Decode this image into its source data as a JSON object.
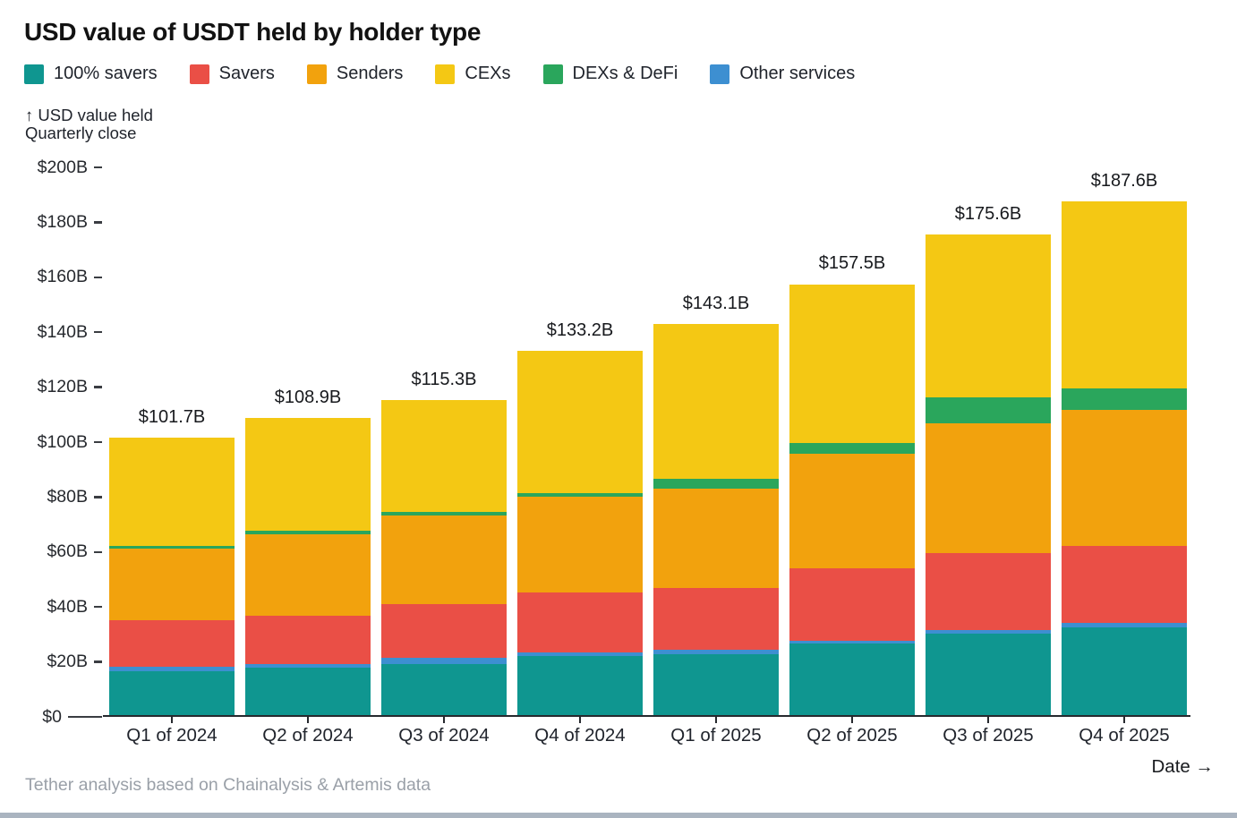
{
  "title": "USD value of USDT held by holder type",
  "legend": [
    {
      "label": "100% savers",
      "color": "#0f9690"
    },
    {
      "label": "Savers",
      "color": "#ea4f46"
    },
    {
      "label": "Senders",
      "color": "#f2a20d"
    },
    {
      "label": "CEXs",
      "color": "#f4c814"
    },
    {
      "label": "DEXs & DeFi",
      "color": "#2aa65c"
    },
    {
      "label": "Other services",
      "color": "#3d8fd1"
    }
  ],
  "y_axis_note_line1": "↑ USD value held",
  "y_axis_note_line2": "Quarterly close",
  "x_axis_label": "Date →",
  "footer": "Tether analysis based on Chainalysis & Artemis data",
  "chart_data": {
    "type": "bar",
    "stacked": true,
    "title": "USD value of USDT held by holder type",
    "xlabel": "Date",
    "ylabel": "USD value held (Quarterly close)",
    "ylim": [
      0,
      200
    ],
    "grid": false,
    "legend_position": "top",
    "y_ticks": [
      "$0",
      "$20B",
      "$40B",
      "$60B",
      "$80B",
      "$100B",
      "$120B",
      "$140B",
      "$160B",
      "$180B",
      "$200B"
    ],
    "categories": [
      "Q1 of 2024",
      "Q2 of 2024",
      "Q3 of 2024",
      "Q4 of 2024",
      "Q1 of 2025",
      "Q2 of 2025",
      "Q3 of 2025",
      "Q4 of 2025"
    ],
    "totals_billions": [
      101.7,
      108.9,
      115.3,
      133.2,
      143.1,
      157.5,
      175.6,
      187.6
    ],
    "total_labels": [
      "$101.7B",
      "$108.9B",
      "$115.3B",
      "$133.2B",
      "$143.1B",
      "$157.5B",
      "$175.6B",
      "$187.6B"
    ],
    "stack_order_bottom_to_top": [
      "100% savers",
      "Other services",
      "Savers",
      "Senders",
      "DEXs & DeFi",
      "CEXs"
    ],
    "series": [
      {
        "name": "100% savers",
        "color": "#0f9690",
        "values": [
          16.6,
          17.9,
          19.3,
          22.3,
          22.9,
          26.6,
          30.2,
          32.6
        ]
      },
      {
        "name": "Other services",
        "color": "#3d8fd1",
        "values": [
          1.7,
          1.4,
          2.2,
          1.1,
          1.6,
          1.2,
          1.4,
          1.6
        ]
      },
      {
        "name": "Savers",
        "color": "#ea4f46",
        "values": [
          16.9,
          17.5,
          19.6,
          22.0,
          22.4,
          26.3,
          28.0,
          28.1
        ]
      },
      {
        "name": "Senders",
        "color": "#f2a20d",
        "values": [
          26.1,
          29.7,
          32.3,
          34.8,
          36.3,
          41.6,
          47.3,
          49.5
        ]
      },
      {
        "name": "DEXs & DeFi",
        "color": "#2aa65c",
        "values": [
          1.0,
          1.3,
          1.1,
          1.4,
          3.6,
          4.1,
          9.5,
          7.6
        ]
      },
      {
        "name": "CEXs",
        "color": "#f4c814",
        "values": [
          39.4,
          41.1,
          40.8,
          51.6,
          56.3,
          57.7,
          59.2,
          68.2
        ]
      }
    ]
  }
}
